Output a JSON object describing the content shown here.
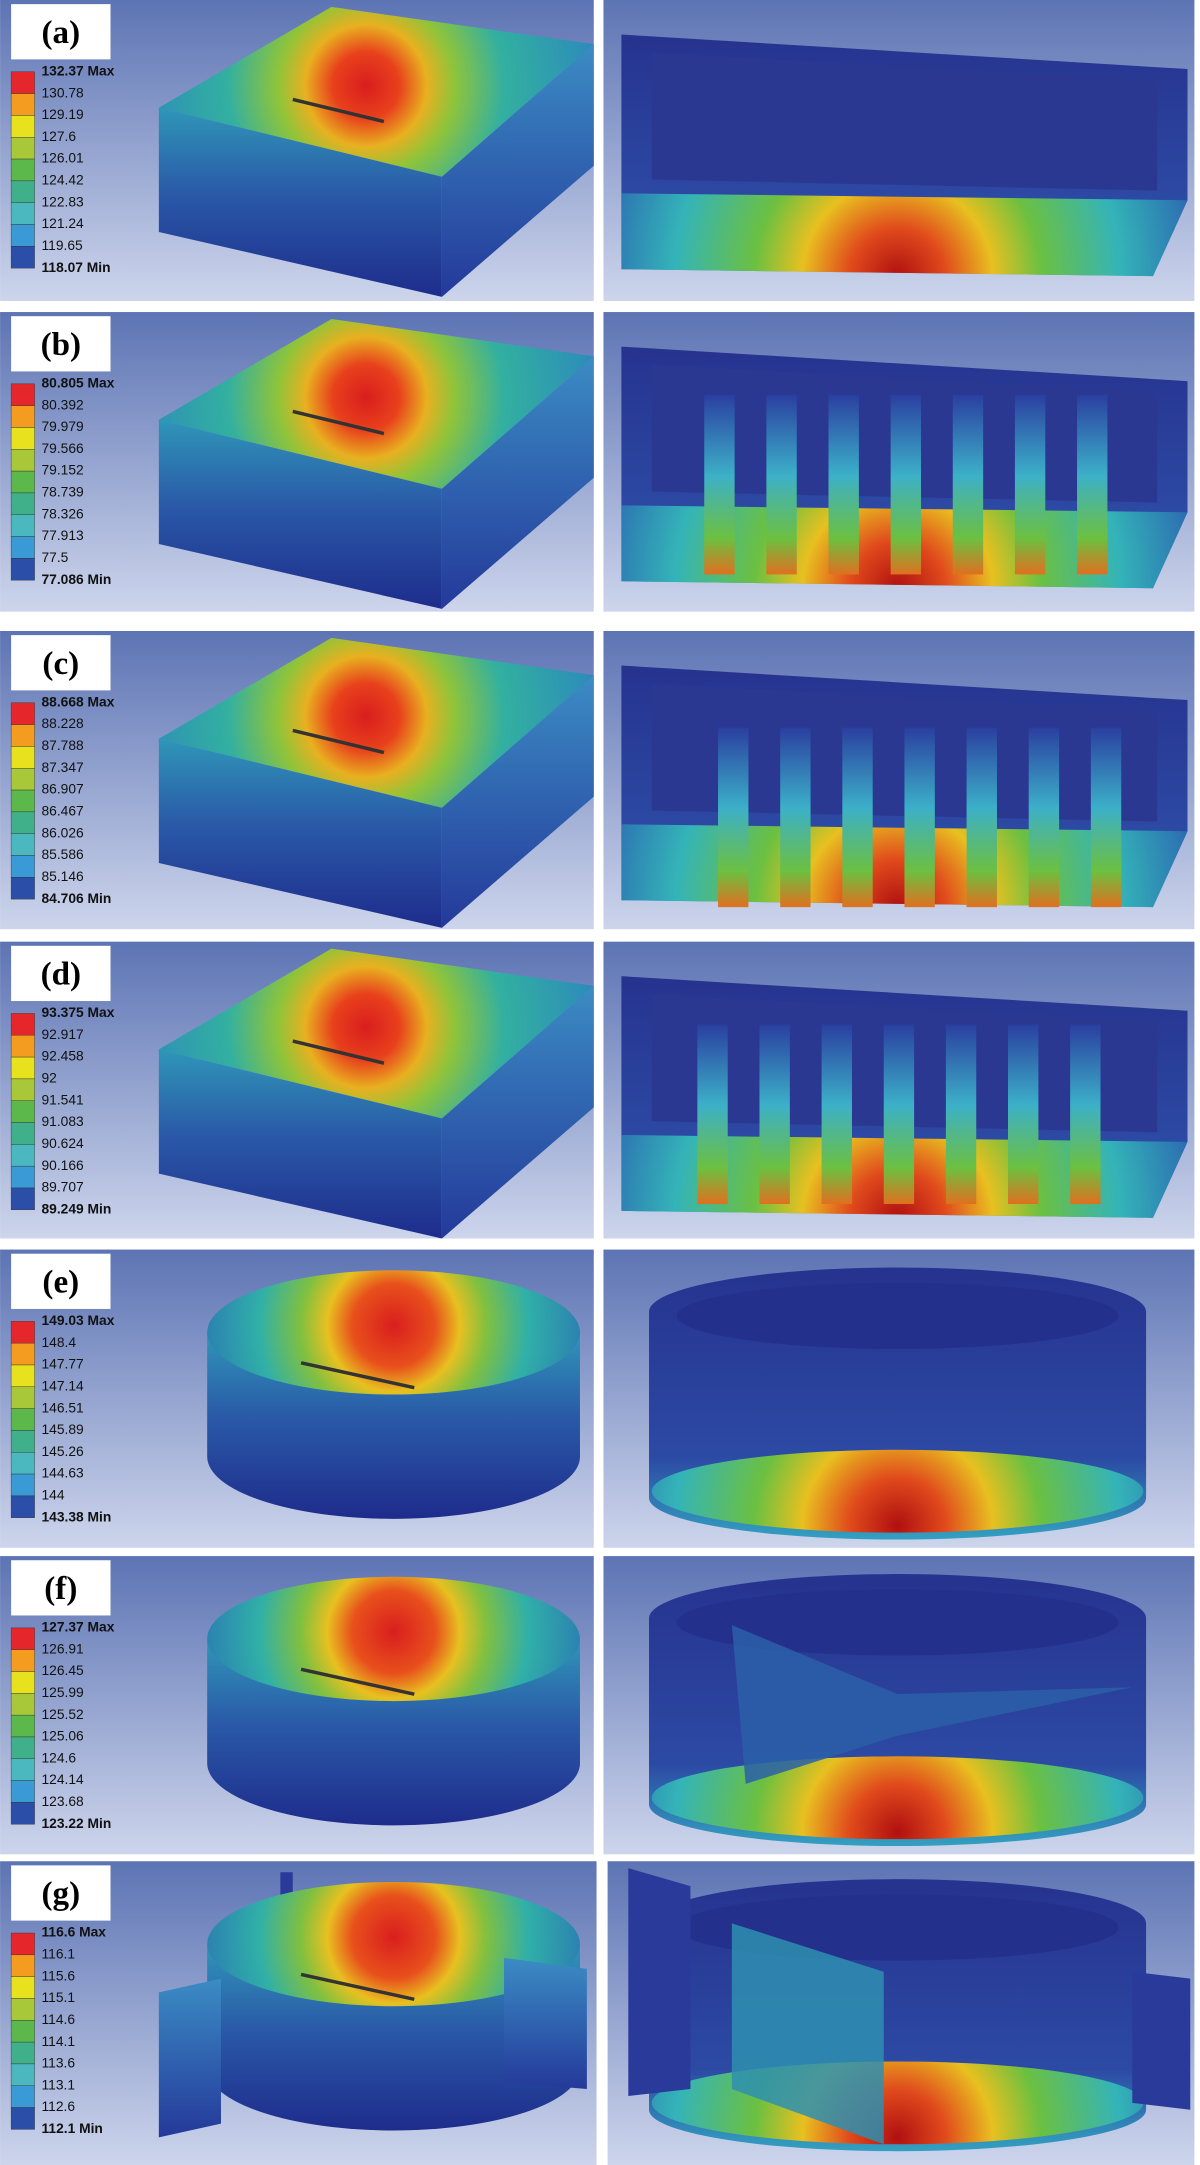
{
  "panels": [
    {
      "label": "(a)",
      "legend": [
        "132.37 Max",
        "130.78",
        "129.19",
        "127.6",
        "126.01",
        "124.42",
        "122.83",
        "121.24",
        "119.65",
        "118.07 Min"
      ]
    },
    {
      "label": "(b)",
      "legend": [
        "80.805 Max",
        "80.392",
        "79.979",
        "79.566",
        "79.152",
        "78.739",
        "78.326",
        "77.913",
        "77.5",
        "77.086 Min"
      ]
    },
    {
      "label": "(c)",
      "legend": [
        "88.668 Max",
        "88.228",
        "87.788",
        "87.347",
        "86.907",
        "86.467",
        "86.026",
        "85.586",
        "85.146",
        "84.706 Min"
      ]
    },
    {
      "label": "(d)",
      "legend": [
        "93.375 Max",
        "92.917",
        "92.458",
        "92",
        "91.541",
        "91.083",
        "90.624",
        "90.166",
        "89.707",
        "89.249 Min"
      ]
    },
    {
      "label": "(e)",
      "legend": [
        "149.03 Max",
        "148.4",
        "147.77",
        "147.14",
        "146.51",
        "145.89",
        "145.26",
        "144.63",
        "144",
        "143.38 Min"
      ]
    },
    {
      "label": "(f)",
      "legend": [
        "127.37 Max",
        "126.91",
        "126.45",
        "125.99",
        "125.52",
        "125.06",
        "124.6",
        "124.14",
        "123.68",
        "123.22 Min"
      ]
    },
    {
      "label": "(g)",
      "legend": [
        "116.6 Max",
        "116.1",
        "115.6",
        "115.1",
        "114.6",
        "114.1",
        "113.6",
        "113.1",
        "112.6",
        "112.1 Min"
      ]
    }
  ],
  "legend_colors": [
    "#e5262a",
    "#f39c1f",
    "#e8e21e",
    "#a8c83a",
    "#5cb84a",
    "#3fb08a",
    "#4bb8c0",
    "#3a9ad6",
    "#2b4fa8"
  ]
}
